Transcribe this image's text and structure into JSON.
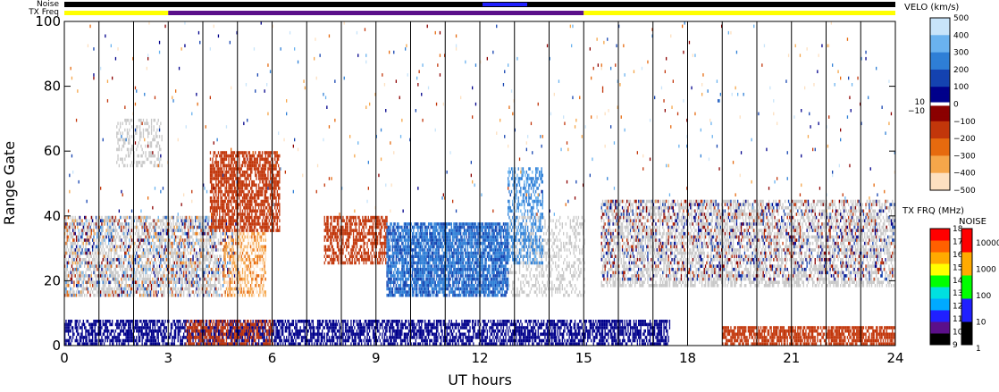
{
  "chart_data": {
    "type": "heatmap",
    "title": "",
    "xlabel": "UT hours",
    "ylabel": "Range Gate",
    "xlim": [
      0,
      24
    ],
    "ylim": [
      0,
      100
    ],
    "x_ticks": [
      "0",
      "3",
      "6",
      "9",
      "12",
      "15",
      "18",
      "21",
      "24"
    ],
    "y_ticks": [
      "0",
      "20",
      "40",
      "60",
      "80",
      "100"
    ],
    "grid": "vertical lines at each scan hour",
    "header_bars": {
      "noise_label": "Noise",
      "txfreq_label": "TX Freq",
      "tx_freq_segments": [
        {
          "start": 0,
          "end": 3,
          "color": "#ffff00"
        },
        {
          "start": 3,
          "end": 15,
          "color": "#5b0f8a"
        },
        {
          "start": 15,
          "end": 24,
          "color": "#ffff00"
        }
      ]
    },
    "ground_scatter_color": "#c8c8c8",
    "regions": [
      {
        "kind": "ground-scatter",
        "x": [
          0.0,
          4.5
        ],
        "y": [
          15,
          40
        ],
        "density": 0.55
      },
      {
        "kind": "ground-scatter",
        "x": [
          1.5,
          2.8
        ],
        "y": [
          55,
          70
        ],
        "density": 0.35
      },
      {
        "kind": "ground-scatter",
        "x": [
          15.5,
          24.0
        ],
        "y": [
          18,
          45
        ],
        "density": 0.55
      },
      {
        "kind": "ground-scatter",
        "x": [
          12.8,
          15.0
        ],
        "y": [
          15,
          40
        ],
        "density": 0.3
      },
      {
        "kind": "velocity",
        "x": [
          0.0,
          5.0
        ],
        "y": [
          15,
          40
        ],
        "v": [
          -400,
          400
        ],
        "density": 0.22
      },
      {
        "kind": "velocity",
        "x": [
          4.2,
          6.2
        ],
        "y": [
          35,
          60
        ],
        "v": [
          -200,
          -120
        ],
        "density": 0.7
      },
      {
        "kind": "velocity",
        "x": [
          4.6,
          5.8
        ],
        "y": [
          15,
          35
        ],
        "v": [
          -500,
          -250
        ],
        "density": 0.6
      },
      {
        "kind": "velocity",
        "x": [
          7.5,
          9.3
        ],
        "y": [
          25,
          40
        ],
        "v": [
          -200,
          -120
        ],
        "density": 0.6
      },
      {
        "kind": "velocity",
        "x": [
          9.3,
          12.8
        ],
        "y": [
          15,
          38
        ],
        "v": [
          150,
          300
        ],
        "density": 0.8
      },
      {
        "kind": "velocity",
        "x": [
          12.8,
          13.8
        ],
        "y": [
          25,
          55
        ],
        "v": [
          200,
          350
        ],
        "density": 0.45
      },
      {
        "kind": "velocity",
        "x": [
          0.0,
          17.5
        ],
        "y": [
          0,
          8
        ],
        "v": [
          40,
          100
        ],
        "density": 0.65
      },
      {
        "kind": "velocity",
        "x": [
          3.5,
          6.0
        ],
        "y": [
          0,
          8
        ],
        "v": [
          -200,
          -130
        ],
        "density": 0.55
      },
      {
        "kind": "velocity",
        "x": [
          19.0,
          24.0
        ],
        "y": [
          0,
          6
        ],
        "v": [
          -200,
          -130
        ],
        "density": 0.75
      },
      {
        "kind": "velocity",
        "x": [
          15.5,
          24.0
        ],
        "y": [
          20,
          45
        ],
        "v": [
          -200,
          200
        ],
        "density": 0.18
      },
      {
        "kind": "velocity",
        "x": [
          0.0,
          24.0
        ],
        "y": [
          40,
          100
        ],
        "v": [
          -500,
          500
        ],
        "density": 0.012
      }
    ]
  },
  "velocity_colorbar": {
    "title": "VELO (km/s)",
    "ticks": [
      "500",
      "400",
      "300",
      "200",
      "100",
      "0",
      "−100",
      "−200",
      "−300",
      "−400",
      "−500"
    ],
    "threshold_hi": "10",
    "threshold_lo": "−10",
    "colors": [
      "#fde0c0",
      "#f5a64a",
      "#e66a0f",
      "#c2360a",
      "#8b0000",
      "#ffffff",
      "#00008b",
      "#1443b0",
      "#2f7fd6",
      "#6ab2ef",
      "#c8e4fa"
    ]
  },
  "txfreq_colorbar": {
    "title": "TX FRQ (MHz)",
    "ticks": [
      "18",
      "17",
      "16",
      "15",
      "14",
      "13",
      "12",
      "11",
      "10",
      "9"
    ],
    "colors": [
      "#000000",
      "#5b0f8a",
      "#2020ff",
      "#00aaff",
      "#00e0e0",
      "#00ff00",
      "#ffff00",
      "#ffaa00",
      "#ff6000",
      "#ff0000"
    ]
  },
  "noise_colorbar": {
    "title": "NOISE",
    "ticks": [
      "10000",
      "1000",
      "100",
      "10",
      "1"
    ],
    "colors": [
      "#000000",
      "#2020ff",
      "#00ff00",
      "#ffaa00",
      "#ff0000"
    ]
  }
}
